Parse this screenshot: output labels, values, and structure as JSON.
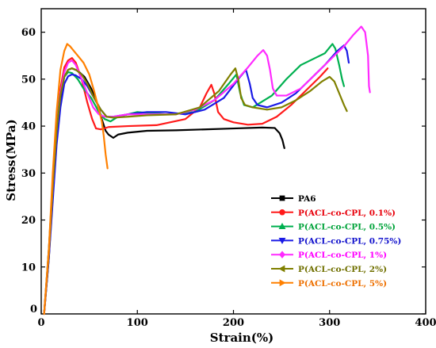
{
  "chart_data": {
    "type": "line",
    "xlabel": "Strain(%)",
    "ylabel": "Stress(MPa)",
    "xlim": [
      0,
      400
    ],
    "ylim": [
      0,
      65
    ],
    "xticks": [
      0,
      100,
      200,
      300,
      400
    ],
    "yticks": [
      0,
      10,
      20,
      30,
      40,
      50,
      60
    ],
    "xtick_labels": [
      "0",
      "100",
      "200",
      "300",
      "400"
    ],
    "ytick_labels": [
      "0",
      "10",
      "20",
      "30",
      "40",
      "50",
      "60"
    ],
    "grid": false,
    "legend_position": "lower-right",
    "series": [
      {
        "name": "PA6",
        "color": "#000000",
        "label_color": "#000000",
        "marker": "square",
        "points": [
          [
            3,
            0
          ],
          [
            8,
            12
          ],
          [
            12,
            26
          ],
          [
            16,
            38
          ],
          [
            20,
            46
          ],
          [
            24,
            50.5
          ],
          [
            28,
            52
          ],
          [
            32,
            52.3
          ],
          [
            38,
            51.8
          ],
          [
            45,
            50.5
          ],
          [
            52,
            48
          ],
          [
            58,
            45
          ],
          [
            63,
            41.5
          ],
          [
            67,
            39
          ],
          [
            70,
            38.2
          ],
          [
            75,
            37.5
          ],
          [
            80,
            38.2
          ],
          [
            90,
            38.6
          ],
          [
            110,
            39
          ],
          [
            140,
            39.1
          ],
          [
            170,
            39.3
          ],
          [
            200,
            39.5
          ],
          [
            230,
            39.7
          ],
          [
            243,
            39.6
          ],
          [
            248,
            38.5
          ],
          [
            251,
            37
          ],
          [
            253,
            35.3
          ]
        ]
      },
      {
        "name": "P(ACL-co-CPL, 0.1%)",
        "color": "#ff1a1a",
        "label_color": "#e8000b",
        "marker": "circle",
        "points": [
          [
            3,
            0
          ],
          [
            8,
            14
          ],
          [
            12,
            28
          ],
          [
            16,
            40
          ],
          [
            20,
            48
          ],
          [
            24,
            52.5
          ],
          [
            28,
            54
          ],
          [
            32,
            54.5
          ],
          [
            36,
            53.5
          ],
          [
            42,
            50
          ],
          [
            48,
            45
          ],
          [
            53,
            41.5
          ],
          [
            57,
            39.5
          ],
          [
            62,
            39.3
          ],
          [
            70,
            39.8
          ],
          [
            90,
            40
          ],
          [
            120,
            40.2
          ],
          [
            150,
            41.5
          ],
          [
            165,
            44
          ],
          [
            172,
            47
          ],
          [
            177,
            48.8
          ],
          [
            180,
            47
          ],
          [
            184,
            43
          ],
          [
            190,
            41.5
          ],
          [
            200,
            40.8
          ],
          [
            215,
            40.3
          ],
          [
            230,
            40.5
          ],
          [
            245,
            42
          ],
          [
            260,
            44.5
          ],
          [
            275,
            47.5
          ],
          [
            290,
            50.5
          ],
          [
            298,
            52.3
          ]
        ]
      },
      {
        "name": "P(ACL-co-CPL, 0.5%)",
        "color": "#00b050",
        "label_color": "#00a33a",
        "marker": "triangle",
        "points": [
          [
            3,
            0
          ],
          [
            8,
            14
          ],
          [
            12,
            28
          ],
          [
            16,
            40
          ],
          [
            20,
            47
          ],
          [
            24,
            50.5
          ],
          [
            28,
            51.5
          ],
          [
            32,
            51.3
          ],
          [
            38,
            50
          ],
          [
            44,
            48
          ],
          [
            52,
            46
          ],
          [
            60,
            43
          ],
          [
            66,
            41.5
          ],
          [
            72,
            41
          ],
          [
            80,
            42
          ],
          [
            100,
            43
          ],
          [
            130,
            42.5
          ],
          [
            160,
            43
          ],
          [
            180,
            45.5
          ],
          [
            195,
            49
          ],
          [
            203,
            51
          ],
          [
            207,
            47
          ],
          [
            211,
            44.5
          ],
          [
            220,
            44
          ],
          [
            240,
            46.5
          ],
          [
            255,
            50
          ],
          [
            270,
            53
          ],
          [
            285,
            54.5
          ],
          [
            295,
            55.5
          ],
          [
            303,
            57.5
          ],
          [
            306,
            56.5
          ],
          [
            310,
            53
          ],
          [
            313,
            50
          ],
          [
            315,
            48.5
          ]
        ]
      },
      {
        "name": "P(ACL-co-CPL, 0.75%)",
        "color": "#1a1ae6",
        "label_color": "#1010cc",
        "marker": "triangle-down",
        "points": [
          [
            3,
            0
          ],
          [
            8,
            12
          ],
          [
            12,
            24
          ],
          [
            16,
            36
          ],
          [
            20,
            44
          ],
          [
            24,
            49
          ],
          [
            28,
            50.6
          ],
          [
            32,
            51
          ],
          [
            36,
            50.8
          ],
          [
            42,
            50
          ],
          [
            48,
            48.5
          ],
          [
            55,
            46
          ],
          [
            62,
            43.5
          ],
          [
            68,
            42
          ],
          [
            75,
            42
          ],
          [
            90,
            42.5
          ],
          [
            110,
            43
          ],
          [
            130,
            43
          ],
          [
            150,
            42.5
          ],
          [
            170,
            43.5
          ],
          [
            190,
            46
          ],
          [
            205,
            50
          ],
          [
            213,
            52
          ],
          [
            217,
            49
          ],
          [
            220,
            46
          ],
          [
            225,
            44.5
          ],
          [
            235,
            44
          ],
          [
            250,
            45
          ],
          [
            265,
            47
          ],
          [
            280,
            50
          ],
          [
            295,
            53
          ],
          [
            308,
            56
          ],
          [
            315,
            57.2
          ],
          [
            318,
            56
          ],
          [
            320,
            53.5
          ]
        ]
      },
      {
        "name": "P(ACL-co-CPL, 1%)",
        "color": "#ff2aff",
        "label_color": "#ff00ff",
        "marker": "diamond",
        "points": [
          [
            3,
            0
          ],
          [
            8,
            13
          ],
          [
            12,
            27
          ],
          [
            16,
            39
          ],
          [
            20,
            47
          ],
          [
            24,
            51.5
          ],
          [
            28,
            53.5
          ],
          [
            32,
            54
          ],
          [
            36,
            53
          ],
          [
            42,
            50
          ],
          [
            48,
            47
          ],
          [
            54,
            44
          ],
          [
            60,
            42.5
          ],
          [
            66,
            42
          ],
          [
            75,
            42
          ],
          [
            90,
            42.5
          ],
          [
            110,
            42.5
          ],
          [
            140,
            42.5
          ],
          [
            160,
            43.5
          ],
          [
            180,
            45.5
          ],
          [
            200,
            49
          ],
          [
            215,
            52.5
          ],
          [
            225,
            55
          ],
          [
            231,
            56.2
          ],
          [
            235,
            55
          ],
          [
            238,
            52
          ],
          [
            241,
            48
          ],
          [
            245,
            46.5
          ],
          [
            255,
            46.5
          ],
          [
            270,
            48
          ],
          [
            285,
            51
          ],
          [
            300,
            54
          ],
          [
            315,
            57
          ],
          [
            325,
            59.5
          ],
          [
            333,
            61.2
          ],
          [
            337,
            60
          ],
          [
            340,
            55
          ],
          [
            341,
            48.5
          ],
          [
            342,
            47.2
          ]
        ]
      },
      {
        "name": "P(ACL-co-CPL, 2%)",
        "color": "#808000",
        "label_color": "#707000",
        "marker": "triangle-left",
        "points": [
          [
            3,
            0
          ],
          [
            8,
            13
          ],
          [
            12,
            27
          ],
          [
            16,
            39
          ],
          [
            20,
            46.5
          ],
          [
            24,
            50.5
          ],
          [
            28,
            52
          ],
          [
            32,
            52.3
          ],
          [
            36,
            52
          ],
          [
            42,
            51
          ],
          [
            48,
            49
          ],
          [
            55,
            46
          ],
          [
            62,
            43.5
          ],
          [
            68,
            42
          ],
          [
            75,
            41.8
          ],
          [
            90,
            42
          ],
          [
            110,
            42.3
          ],
          [
            140,
            42.5
          ],
          [
            165,
            44
          ],
          [
            185,
            47.5
          ],
          [
            197,
            51
          ],
          [
            202,
            52.3
          ],
          [
            205,
            50
          ],
          [
            208,
            46
          ],
          [
            212,
            44.5
          ],
          [
            220,
            44
          ],
          [
            235,
            43.5
          ],
          [
            250,
            44
          ],
          [
            265,
            45.5
          ],
          [
            280,
            47.5
          ],
          [
            292,
            49.5
          ],
          [
            300,
            50.5
          ],
          [
            305,
            49.5
          ],
          [
            310,
            47
          ],
          [
            315,
            44.5
          ],
          [
            318,
            43.2
          ]
        ]
      },
      {
        "name": "P(ACL-co-CPL, 5%)",
        "color": "#ff8000",
        "label_color": "#ee7000",
        "marker": "triangle-right",
        "points": [
          [
            3,
            0
          ],
          [
            8,
            14
          ],
          [
            12,
            30
          ],
          [
            16,
            43
          ],
          [
            20,
            52
          ],
          [
            24,
            56
          ],
          [
            27,
            57.5
          ],
          [
            30,
            57
          ],
          [
            34,
            56
          ],
          [
            38,
            55
          ],
          [
            44,
            53.5
          ],
          [
            50,
            51
          ],
          [
            55,
            47.5
          ],
          [
            60,
            43.5
          ],
          [
            63,
            41
          ],
          [
            65,
            38
          ],
          [
            67,
            34
          ],
          [
            69,
            31
          ]
        ]
      }
    ]
  }
}
